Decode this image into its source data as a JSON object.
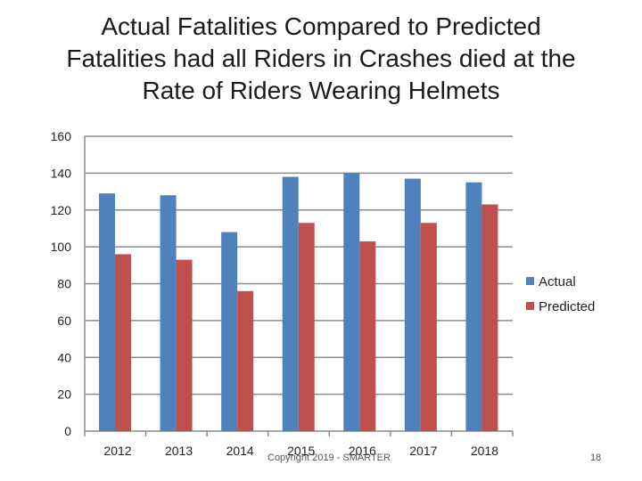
{
  "slide": {
    "title_lines": [
      "Actual Fatalities Compared to Predicted",
      "Fatalities had all Riders in Crashes died at the",
      "Rate of Riders Wearing Helmets"
    ],
    "footer": "Copyright 2019 - SMARTER",
    "page_number": "18"
  },
  "colors": {
    "actual": "#4F81BD",
    "predicted": "#C0504D"
  },
  "chart_data": {
    "type": "bar",
    "title": "Actual Fatalities Compared to Predicted Fatalities had all Riders in Crashes died at the Rate of Riders Wearing Helmets",
    "categories": [
      "2012",
      "2013",
      "2014",
      "2015",
      "2016",
      "2017",
      "2018"
    ],
    "series": [
      {
        "name": "Actual",
        "values": [
          129,
          128,
          108,
          138,
          140,
          137,
          135
        ]
      },
      {
        "name": "Predicted",
        "values": [
          96,
          93,
          76,
          113,
          103,
          113,
          123
        ]
      }
    ],
    "ylim": [
      0,
      160
    ],
    "yticks": [
      0,
      20,
      40,
      60,
      80,
      100,
      120,
      140,
      160
    ],
    "grid": true,
    "legend": "right",
    "xlabel": "",
    "ylabel": ""
  }
}
